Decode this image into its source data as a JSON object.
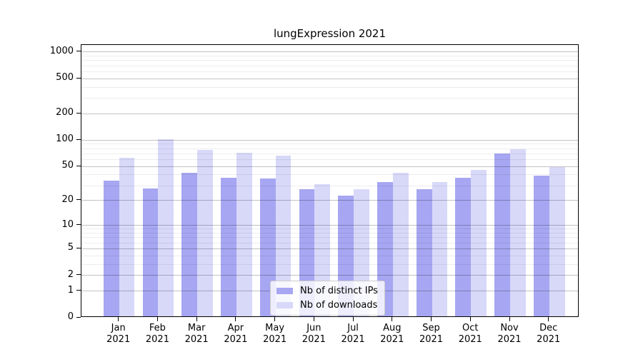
{
  "chart_data": {
    "type": "bar",
    "title": "lungExpression 2021",
    "year": "2021",
    "categories": [
      "Jan",
      "Feb",
      "Mar",
      "Apr",
      "May",
      "Jun",
      "Jul",
      "Aug",
      "Sep",
      "Oct",
      "Nov",
      "Dec"
    ],
    "series": [
      {
        "name": "Nb of distinct IPs",
        "color": "#a6a6f2",
        "values": [
          34,
          28,
          42,
          37,
          36,
          27,
          23,
          33,
          27,
          37,
          70,
          39
        ]
      },
      {
        "name": "Nb of downloads",
        "color": "#d8d8f9",
        "values": [
          63,
          103,
          77,
          72,
          66,
          31,
          27,
          42,
          33,
          46,
          79,
          49
        ]
      }
    ],
    "xlabel": "",
    "ylabel": "",
    "y_scale": "log1p",
    "ylim": [
      0,
      1200
    ],
    "y_ticks": [
      0,
      1,
      2,
      5,
      10,
      20,
      50,
      100,
      200,
      500,
      1000
    ],
    "y_grid_minor": [
      3,
      4,
      6,
      7,
      8,
      9,
      30,
      40,
      60,
      70,
      80,
      90,
      300,
      400,
      600,
      700,
      800,
      900
    ],
    "grid": "on",
    "legend_position": "lower-center"
  }
}
